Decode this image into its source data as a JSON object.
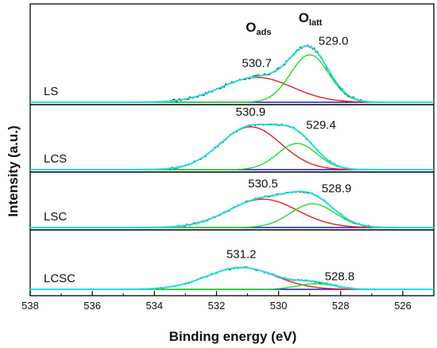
{
  "chart_data": {
    "type": "line",
    "xlabel": "Binding energy (eV)",
    "ylabel": "Intensity (a.u.)",
    "xlim": [
      538,
      525
    ],
    "x_reversed": true,
    "x_ticks": [
      538,
      536,
      534,
      532,
      530,
      528,
      526
    ],
    "grid": false,
    "peak_headers": [
      {
        "main": "O",
        "sub": "ads",
        "position": 530.75
      },
      {
        "main": "O",
        "sub": "latt",
        "position": 529.05
      }
    ],
    "colors": {
      "raw": "#000000",
      "fit": "#22e0e0",
      "ads": "#e02020",
      "latt": "#22dd22",
      "background": "#1a1acc",
      "frame": "#000000"
    },
    "panels": [
      {
        "label": "LS",
        "ads": {
          "label": "530.7",
          "center": 530.7,
          "height": 0.33,
          "fwhm": 2.7
        },
        "latt": {
          "label": "529.0",
          "center": 529.0,
          "height": 0.63,
          "fwhm": 1.45
        }
      },
      {
        "label": "LCS",
        "ads": {
          "label": "530.9",
          "center": 530.9,
          "height": 0.72,
          "fwhm": 2.3
        },
        "latt": {
          "label": "529.4",
          "center": 529.4,
          "height": 0.44,
          "fwhm": 1.5
        }
      },
      {
        "label": "LSC",
        "ads": {
          "label": "530.5",
          "center": 530.5,
          "height": 0.55,
          "fwhm": 2.6
        },
        "latt": {
          "label": "528.9",
          "center": 528.9,
          "height": 0.46,
          "fwhm": 1.7
        }
      },
      {
        "label": "LCSC",
        "ads": {
          "label": "531.2",
          "center": 531.2,
          "height": 0.5,
          "fwhm": 2.6
        },
        "latt": {
          "label": "528.8",
          "center": 528.8,
          "height": 0.13,
          "fwhm": 1.4
        }
      }
    ]
  }
}
